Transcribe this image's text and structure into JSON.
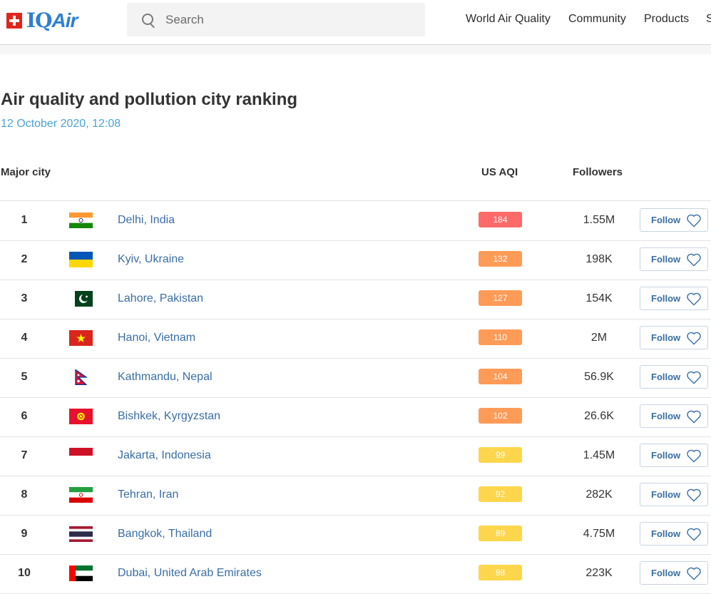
{
  "header": {
    "logo": {
      "swiss": "IQ",
      "air": "Air"
    },
    "search": {
      "placeholder": "Search"
    },
    "nav": [
      "World Air Quality",
      "Community",
      "Products",
      "S"
    ]
  },
  "page": {
    "title": "Air quality and pollution city ranking",
    "date": "12 October 2020, 12:08"
  },
  "table": {
    "columns": {
      "city": "Major city",
      "aqi": "US AQI",
      "followers": "Followers"
    },
    "follow_label": "Follow",
    "aqi_colors": {
      "unhealthy": "#fe6a69",
      "sensitive": "#fe9b57",
      "moderate": "#fdd64b"
    },
    "rows": [
      {
        "rank": "1",
        "flag": "india-flag",
        "city": "Delhi, India",
        "aqi": "184",
        "followers": "1.55M",
        "level": "unhealthy"
      },
      {
        "rank": "2",
        "flag": "ukraine-flag",
        "city": "Kyiv, Ukraine",
        "aqi": "132",
        "followers": "198K",
        "level": "sensitive"
      },
      {
        "rank": "3",
        "flag": "pakistan-flag",
        "city": "Lahore, Pakistan",
        "aqi": "127",
        "followers": "154K",
        "level": "sensitive"
      },
      {
        "rank": "4",
        "flag": "vietnam-flag",
        "city": "Hanoi, Vietnam",
        "aqi": "110",
        "followers": "2M",
        "level": "sensitive"
      },
      {
        "rank": "5",
        "flag": "nepal-flag",
        "city": "Kathmandu, Nepal",
        "aqi": "104",
        "followers": "56.9K",
        "level": "sensitive"
      },
      {
        "rank": "6",
        "flag": "kyrgyzstan-flag",
        "city": "Bishkek, Kyrgyzstan",
        "aqi": "102",
        "followers": "26.6K",
        "level": "sensitive"
      },
      {
        "rank": "7",
        "flag": "indonesia-flag",
        "city": "Jakarta, Indonesia",
        "aqi": "99",
        "followers": "1.45M",
        "level": "moderate"
      },
      {
        "rank": "8",
        "flag": "iran-flag",
        "city": "Tehran, Iran",
        "aqi": "92",
        "followers": "282K",
        "level": "moderate"
      },
      {
        "rank": "9",
        "flag": "thailand-flag",
        "city": "Bangkok, Thailand",
        "aqi": "89",
        "followers": "4.75M",
        "level": "moderate"
      },
      {
        "rank": "10",
        "flag": "uae-flag",
        "city": "Dubai, United Arab Emirates",
        "aqi": "88",
        "followers": "223K",
        "level": "moderate"
      }
    ]
  }
}
